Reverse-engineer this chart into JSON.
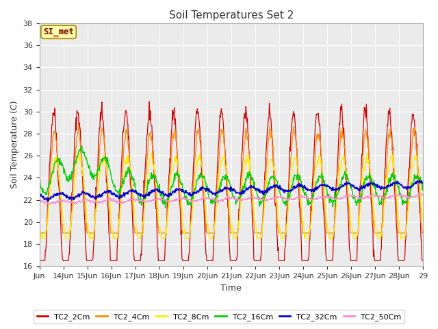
{
  "title": "Soil Temperatures Set 2",
  "xlabel": "Time",
  "ylabel": "Soil Temperature (C)",
  "ylim": [
    16,
    38
  ],
  "yticks": [
    16,
    18,
    20,
    22,
    24,
    26,
    28,
    30,
    32,
    34,
    36,
    38
  ],
  "fig_bg": "#ffffff",
  "plot_bg": "#ebebeb",
  "annotation_text": "SI_met",
  "annotation_bg": "#ffffaa",
  "annotation_border": "#aa8800",
  "series_colors": {
    "TC2_2Cm": "#cc0000",
    "TC2_4Cm": "#ff8800",
    "TC2_8Cm": "#ffee00",
    "TC2_16Cm": "#00cc00",
    "TC2_32Cm": "#0000cc",
    "TC2_50Cm": "#ff88cc"
  },
  "x_tick_labels": [
    "Jun",
    "14Jun",
    "15Jun",
    "16Jun",
    "17Jun",
    "18Jun",
    "19Jun",
    "20Jun",
    "21Jun",
    "22Jun",
    "23Jun",
    "24Jun",
    "25Jun",
    "26Jun",
    "27Jun",
    "28Jun",
    "29"
  ],
  "n_days": 16,
  "pts_per_day": 48
}
